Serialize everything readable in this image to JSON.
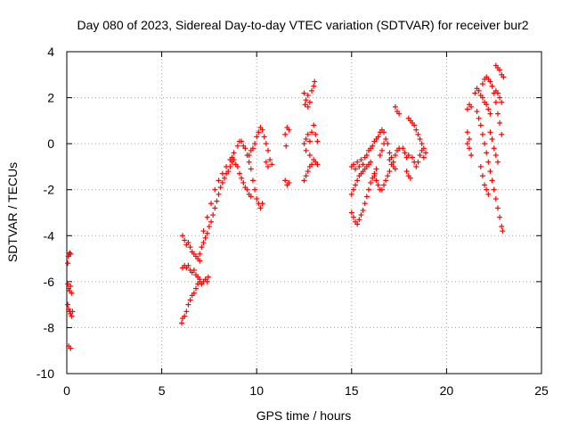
{
  "chart_data": {
    "type": "scatter",
    "title": "Day 080 of 2023, Sidereal Day-to-day VTEC variation (SDTVAR) for receiver bur2",
    "xlabel": "GPS time / hours",
    "ylabel": "SDTVAR / TECUs",
    "xlim": [
      0,
      25
    ],
    "ylim": [
      -10,
      4
    ],
    "xticks": [
      0,
      5,
      10,
      15,
      20,
      25
    ],
    "yticks": [
      -10,
      -8,
      -6,
      -4,
      -2,
      0,
      2,
      4
    ],
    "grid": true,
    "marker": "plus",
    "color": "#ff0000",
    "series": [
      {
        "name": "SDTVAR",
        "points": [
          [
            0.05,
            -5.2
          ],
          [
            0.08,
            -4.9
          ],
          [
            0.12,
            -4.8
          ],
          [
            0.15,
            -4.75
          ],
          [
            0.2,
            -4.8
          ],
          [
            0.05,
            -6.1
          ],
          [
            0.1,
            -6.3
          ],
          [
            0.15,
            -6.4
          ],
          [
            0.2,
            -6.2
          ],
          [
            0.25,
            -6.5
          ],
          [
            0.05,
            -7.0
          ],
          [
            0.1,
            -7.2
          ],
          [
            0.15,
            -7.3
          ],
          [
            0.2,
            -7.4
          ],
          [
            0.25,
            -7.5
          ],
          [
            0.3,
            -7.3
          ],
          [
            0.1,
            -8.8
          ],
          [
            0.2,
            -8.9
          ],
          [
            6.05,
            -7.8
          ],
          [
            6.1,
            -7.6
          ],
          [
            6.2,
            -7.5
          ],
          [
            6.3,
            -7.3
          ],
          [
            6.4,
            -7.0
          ],
          [
            6.5,
            -6.8
          ],
          [
            6.6,
            -6.6
          ],
          [
            6.7,
            -6.5
          ],
          [
            6.8,
            -6.3
          ],
          [
            6.9,
            -6.1
          ],
          [
            7.0,
            -6.0
          ],
          [
            7.1,
            -6.1
          ],
          [
            7.2,
            -6.0
          ],
          [
            7.3,
            -5.9
          ],
          [
            7.4,
            -6.0
          ],
          [
            7.45,
            -5.8
          ],
          [
            6.1,
            -5.4
          ],
          [
            6.2,
            -5.3
          ],
          [
            6.3,
            -5.4
          ],
          [
            6.4,
            -5.3
          ],
          [
            6.5,
            -5.5
          ],
          [
            6.6,
            -5.6
          ],
          [
            6.7,
            -5.5
          ],
          [
            6.8,
            -5.7
          ],
          [
            6.9,
            -5.8
          ],
          [
            7.0,
            -5.9
          ],
          [
            6.1,
            -4.0
          ],
          [
            6.2,
            -4.2
          ],
          [
            6.3,
            -4.4
          ],
          [
            6.4,
            -4.3
          ],
          [
            6.5,
            -4.5
          ],
          [
            6.6,
            -4.7
          ],
          [
            6.7,
            -4.8
          ],
          [
            6.8,
            -4.9
          ],
          [
            6.9,
            -5.0
          ],
          [
            7.0,
            -5.1
          ],
          [
            7.0,
            -4.8
          ],
          [
            7.1,
            -4.5
          ],
          [
            7.2,
            -4.3
          ],
          [
            7.3,
            -4.1
          ],
          [
            7.4,
            -3.9
          ],
          [
            7.5,
            -3.6
          ],
          [
            7.6,
            -3.4
          ],
          [
            7.7,
            -3.1
          ],
          [
            7.8,
            -2.8
          ],
          [
            7.9,
            -2.5
          ],
          [
            8.0,
            -2.2
          ],
          [
            8.1,
            -1.9
          ],
          [
            8.2,
            -1.7
          ],
          [
            8.3,
            -1.5
          ],
          [
            8.4,
            -1.3
          ],
          [
            8.5,
            -1.2
          ],
          [
            8.6,
            -1.0
          ],
          [
            8.7,
            -0.8
          ],
          [
            7.2,
            -3.8
          ],
          [
            7.4,
            -3.2
          ],
          [
            7.6,
            -2.6
          ],
          [
            7.8,
            -2.0
          ],
          [
            8.0,
            -1.6
          ],
          [
            8.2,
            -1.3
          ],
          [
            8.4,
            -1.0
          ],
          [
            8.6,
            -0.7
          ],
          [
            8.8,
            -0.4
          ],
          [
            9.0,
            -0.1
          ],
          [
            9.1,
            0.1
          ],
          [
            9.2,
            0.1
          ],
          [
            9.3,
            -0.1
          ],
          [
            9.4,
            -0.2
          ],
          [
            9.5,
            -0.5
          ],
          [
            9.6,
            -0.8
          ],
          [
            9.7,
            -1.1
          ],
          [
            9.8,
            -1.6
          ],
          [
            9.9,
            -2.0
          ],
          [
            10.0,
            -2.4
          ],
          [
            10.1,
            -2.6
          ],
          [
            10.2,
            -2.8
          ],
          [
            10.3,
            -2.6
          ],
          [
            8.7,
            -0.6
          ],
          [
            8.8,
            -0.7
          ],
          [
            8.9,
            -0.9
          ],
          [
            9.0,
            -1.0
          ],
          [
            9.1,
            -1.3
          ],
          [
            9.2,
            -1.5
          ],
          [
            9.3,
            -1.7
          ],
          [
            9.4,
            -1.9
          ],
          [
            9.5,
            -2.0
          ],
          [
            9.6,
            -2.2
          ],
          [
            9.7,
            -2.3
          ],
          [
            9.6,
            -0.5
          ],
          [
            9.7,
            -0.3
          ],
          [
            9.8,
            -0.2
          ],
          [
            9.9,
            0.0
          ],
          [
            10.0,
            0.3
          ],
          [
            10.1,
            0.5
          ],
          [
            10.2,
            0.7
          ],
          [
            10.3,
            0.6
          ],
          [
            10.4,
            0.3
          ],
          [
            10.5,
            0.0
          ],
          [
            10.6,
            -0.3
          ],
          [
            10.5,
            -0.8
          ],
          [
            10.6,
            -1.0
          ],
          [
            10.7,
            -0.7
          ],
          [
            10.8,
            -0.9
          ],
          [
            11.5,
            0.4
          ],
          [
            11.6,
            0.7
          ],
          [
            11.7,
            0.6
          ],
          [
            11.55,
            -0.1
          ],
          [
            11.5,
            -1.6
          ],
          [
            11.6,
            -1.8
          ],
          [
            11.7,
            -1.7
          ],
          [
            12.5,
            2.2
          ],
          [
            12.6,
            1.9
          ],
          [
            12.7,
            2.1
          ],
          [
            12.8,
            1.8
          ],
          [
            12.9,
            2.3
          ],
          [
            13.0,
            2.5
          ],
          [
            13.05,
            2.7
          ],
          [
            12.55,
            1.7
          ],
          [
            12.7,
            1.6
          ],
          [
            12.5,
            0.0
          ],
          [
            12.6,
            0.2
          ],
          [
            12.7,
            0.4
          ],
          [
            12.8,
            0.1
          ],
          [
            12.9,
            0.5
          ],
          [
            13.0,
            0.8
          ],
          [
            13.1,
            0.4
          ],
          [
            13.2,
            0.1
          ],
          [
            12.6,
            -0.3
          ],
          [
            12.8,
            -0.5
          ],
          [
            12.5,
            -1.6
          ],
          [
            12.6,
            -1.4
          ],
          [
            12.7,
            -1.2
          ],
          [
            12.8,
            -1.0
          ],
          [
            12.9,
            -0.9
          ],
          [
            13.0,
            -0.7
          ],
          [
            13.1,
            -0.8
          ],
          [
            13.2,
            -0.9
          ],
          [
            15.0,
            -1.0
          ],
          [
            15.1,
            -0.9
          ],
          [
            15.2,
            -1.1
          ],
          [
            15.3,
            -0.8
          ],
          [
            15.4,
            -1.0
          ],
          [
            15.5,
            -0.7
          ],
          [
            15.6,
            -0.9
          ],
          [
            15.7,
            -0.6
          ],
          [
            15.8,
            -0.5
          ],
          [
            15.9,
            -0.3
          ],
          [
            16.0,
            -0.2
          ],
          [
            16.1,
            -0.1
          ],
          [
            16.2,
            0.1
          ],
          [
            16.3,
            0.2
          ],
          [
            16.4,
            0.3
          ],
          [
            16.5,
            0.5
          ],
          [
            16.6,
            0.6
          ],
          [
            16.7,
            0.5
          ],
          [
            15.0,
            -2.2
          ],
          [
            15.1,
            -2.0
          ],
          [
            15.2,
            -1.8
          ],
          [
            15.3,
            -1.6
          ],
          [
            15.4,
            -1.4
          ],
          [
            15.5,
            -1.3
          ],
          [
            15.6,
            -1.2
          ],
          [
            15.7,
            -1.1
          ],
          [
            15.8,
            -1.0
          ],
          [
            15.9,
            -0.9
          ],
          [
            16.0,
            -0.8
          ],
          [
            15.0,
            -3.0
          ],
          [
            15.1,
            -3.2
          ],
          [
            15.2,
            -3.4
          ],
          [
            15.3,
            -3.5
          ],
          [
            15.4,
            -3.3
          ],
          [
            15.5,
            -3.1
          ],
          [
            15.6,
            -2.9
          ],
          [
            15.7,
            -2.6
          ],
          [
            15.8,
            -2.3
          ],
          [
            15.9,
            -2.0
          ],
          [
            16.0,
            -1.7
          ],
          [
            16.1,
            -1.5
          ],
          [
            16.2,
            -1.3
          ],
          [
            16.3,
            -1.1
          ],
          [
            16.2,
            -1.4
          ],
          [
            16.3,
            -1.6
          ],
          [
            16.4,
            -1.8
          ],
          [
            16.5,
            -2.0
          ],
          [
            16.6,
            -2.0
          ],
          [
            16.7,
            -1.8
          ],
          [
            16.8,
            -1.6
          ],
          [
            16.9,
            -1.4
          ],
          [
            17.0,
            -1.2
          ],
          [
            16.5,
            -0.5
          ],
          [
            16.6,
            -0.3
          ],
          [
            16.7,
            0.0
          ],
          [
            16.8,
            0.2
          ],
          [
            16.9,
            0.0
          ],
          [
            17.0,
            -0.4
          ],
          [
            17.1,
            -0.6
          ],
          [
            17.2,
            -0.8
          ],
          [
            17.3,
            -0.5
          ],
          [
            17.4,
            -0.3
          ],
          [
            17.5,
            -0.2
          ],
          [
            17.0,
            -0.7
          ],
          [
            17.1,
            -0.9
          ],
          [
            17.2,
            -1.0
          ],
          [
            17.3,
            -1.1
          ],
          [
            17.3,
            1.6
          ],
          [
            17.4,
            1.4
          ],
          [
            17.5,
            1.3
          ],
          [
            17.7,
            -0.2
          ],
          [
            17.8,
            -0.4
          ],
          [
            17.9,
            -0.6
          ],
          [
            18.0,
            -0.5
          ],
          [
            17.9,
            -1.2
          ],
          [
            18.0,
            -1.4
          ],
          [
            18.1,
            -1.5
          ],
          [
            18.0,
            1.1
          ],
          [
            18.1,
            1.0
          ],
          [
            18.2,
            0.9
          ],
          [
            18.3,
            0.8
          ],
          [
            18.4,
            0.6
          ],
          [
            18.5,
            0.4
          ],
          [
            18.6,
            0.2
          ],
          [
            18.7,
            0.0
          ],
          [
            18.8,
            -0.2
          ],
          [
            18.9,
            -0.4
          ],
          [
            18.2,
            -0.6
          ],
          [
            18.3,
            -0.8
          ],
          [
            18.4,
            -1.0
          ],
          [
            18.5,
            -0.8
          ],
          [
            18.6,
            -0.5
          ],
          [
            18.7,
            -0.3
          ],
          [
            18.8,
            -0.6
          ],
          [
            21.1,
            1.5
          ],
          [
            21.2,
            1.7
          ],
          [
            21.3,
            1.6
          ],
          [
            21.1,
            0.5
          ],
          [
            21.2,
            0.2
          ],
          [
            21.1,
            0.0
          ],
          [
            21.3,
            -0.5
          ],
          [
            21.2,
            -0.2
          ],
          [
            21.5,
            2.2
          ],
          [
            21.6,
            2.4
          ],
          [
            21.7,
            2.3
          ],
          [
            21.8,
            2.1
          ],
          [
            21.9,
            2.0
          ],
          [
            22.0,
            1.8
          ],
          [
            22.1,
            1.7
          ],
          [
            22.2,
            1.5
          ],
          [
            22.3,
            1.3
          ],
          [
            21.6,
            1.4
          ],
          [
            21.7,
            1.1
          ],
          [
            21.8,
            0.8
          ],
          [
            21.9,
            0.4
          ],
          [
            22.0,
            0.0
          ],
          [
            22.1,
            -0.4
          ],
          [
            22.2,
            -0.8
          ],
          [
            22.3,
            -1.2
          ],
          [
            22.4,
            -1.6
          ],
          [
            22.5,
            -2.0
          ],
          [
            22.6,
            -2.4
          ],
          [
            22.7,
            -2.8
          ],
          [
            22.8,
            -3.2
          ],
          [
            22.9,
            -3.6
          ],
          [
            22.95,
            -3.8
          ],
          [
            21.8,
            -1.0
          ],
          [
            21.9,
            -1.4
          ],
          [
            22.0,
            -1.8
          ],
          [
            22.1,
            -2.0
          ],
          [
            22.2,
            -2.2
          ],
          [
            21.9,
            2.6
          ],
          [
            22.0,
            2.8
          ],
          [
            22.1,
            2.9
          ],
          [
            22.2,
            2.8
          ],
          [
            22.3,
            2.7
          ],
          [
            22.4,
            2.5
          ],
          [
            22.5,
            2.2
          ],
          [
            22.6,
            1.8
          ],
          [
            22.7,
            1.3
          ],
          [
            22.8,
            0.9
          ],
          [
            22.9,
            0.4
          ],
          [
            22.3,
            0.5
          ],
          [
            22.4,
            0.2
          ],
          [
            22.5,
            -0.2
          ],
          [
            22.6,
            -0.5
          ],
          [
            22.7,
            -0.8
          ],
          [
            22.6,
            3.4
          ],
          [
            22.7,
            3.3
          ],
          [
            22.8,
            3.2
          ],
          [
            22.9,
            3.0
          ],
          [
            23.0,
            2.9
          ],
          [
            22.6,
            2.3
          ],
          [
            22.7,
            2.2
          ],
          [
            22.8,
            2.0
          ],
          [
            22.9,
            1.8
          ]
        ]
      }
    ]
  }
}
